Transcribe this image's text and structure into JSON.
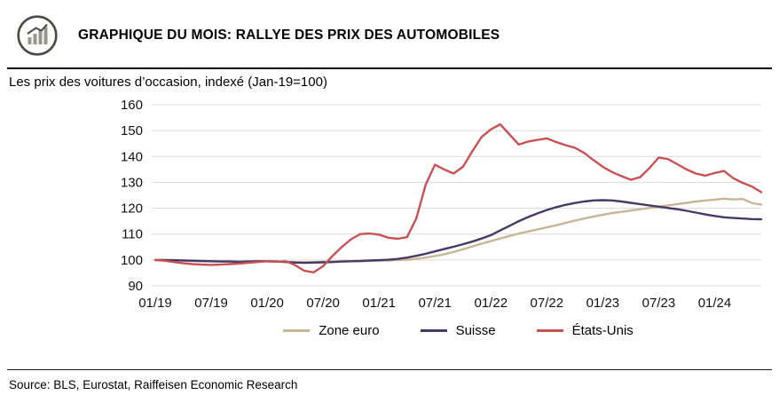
{
  "theme": {
    "grid_color": "#DADADA",
    "rule_color": "#000000",
    "text_color": "#111111",
    "icon_color": "#4D4A46"
  },
  "header": {
    "title": "GRAPHIQUE DU MOIS: RALLYE DES PRIX DES AUTOMOBILES",
    "icon": "bar-chart-icon"
  },
  "chart_data": {
    "type": "line",
    "title": "Les prix des voitures d’occasion, indexé (Jan-19=100)",
    "x_unit": "month",
    "x_start": "01/19",
    "x_end": "06/24",
    "x_tick_labels": [
      "01/19",
      "07/19",
      "01/20",
      "07/20",
      "01/21",
      "07/21",
      "01/22",
      "07/22",
      "01/23",
      "07/23",
      "01/24"
    ],
    "ylim": [
      90,
      160
    ],
    "y_ticks": [
      90,
      100,
      110,
      120,
      130,
      140,
      150,
      160
    ],
    "grid": "horizontal",
    "legend_position": "bottom",
    "series": [
      {
        "name": "Zone euro",
        "color": "#C6B695",
        "values": [
          100,
          99.9,
          99.8,
          99.7,
          99.6,
          99.5,
          99.5,
          99.4,
          99.4,
          99.3,
          99.3,
          99.4,
          99.4,
          99.4,
          99.3,
          99.2,
          99.1,
          99.2,
          99.3,
          99.4,
          99.4,
          99.5,
          99.5,
          99.6,
          99.7,
          99.8,
          99.9,
          100.1,
          100.4,
          100.9,
          101.5,
          102.2,
          103.1,
          104.1,
          105.2,
          106.3,
          107.3,
          108.3,
          109.3,
          110.2,
          111.0,
          111.8,
          112.6,
          113.4,
          114.3,
          115.2,
          116.0,
          116.8,
          117.5,
          118.1,
          118.6,
          119.1,
          119.6,
          120.1,
          120.6,
          121.1,
          121.6,
          122.1,
          122.6,
          123.0,
          123.3,
          123.7,
          123.4,
          123.6,
          122.0,
          121.4
        ]
      },
      {
        "name": "Suisse",
        "color": "#473866",
        "values": [
          100,
          100,
          99.9,
          99.8,
          99.7,
          99.6,
          99.5,
          99.4,
          99.4,
          99.3,
          99.4,
          99.5,
          99.5,
          99.4,
          99.2,
          99.0,
          98.9,
          99.0,
          99.1,
          99.2,
          99.4,
          99.5,
          99.6,
          99.8,
          99.9,
          100.1,
          100.4,
          100.9,
          101.6,
          102.4,
          103.3,
          104.2,
          105.1,
          106.1,
          107.1,
          108.3,
          109.6,
          111.4,
          113.2,
          115.0,
          116.6,
          118.0,
          119.3,
          120.4,
          121.3,
          122.0,
          122.6,
          123.0,
          123.1,
          123.0,
          122.6,
          122.1,
          121.6,
          121.1,
          120.6,
          120.1,
          119.6,
          119.0,
          118.3,
          117.6,
          117.0,
          116.5,
          116.2,
          116.0,
          115.8,
          115.7
        ]
      },
      {
        "name": "États-Unis",
        "color": "#C75154",
        "values": [
          100,
          99.7,
          99.2,
          98.7,
          98.4,
          98.2,
          98.1,
          98.2,
          98.4,
          98.6,
          98.9,
          99.2,
          99.5,
          99.3,
          99.5,
          98.0,
          95.8,
          95.2,
          97.6,
          101.5,
          105.0,
          108.0,
          110.0,
          110.2,
          109.8,
          108.6,
          108.2,
          108.8,
          116.0,
          129.0,
          136.8,
          135.0,
          133.4,
          136.0,
          142.0,
          147.5,
          150.5,
          152.4,
          148.5,
          144.6,
          145.8,
          146.4,
          147.0,
          145.6,
          144.4,
          143.4,
          141.4,
          138.6,
          136.0,
          134.0,
          132.4,
          131.0,
          132.0,
          135.5,
          139.6,
          139.0,
          137.0,
          135.0,
          133.4,
          132.6,
          133.6,
          134.4,
          131.6,
          129.8,
          128.4,
          126.2
        ]
      }
    ]
  },
  "footer": {
    "source": "Source: BLS, Eurostat, Raiffeisen Economic Research"
  }
}
